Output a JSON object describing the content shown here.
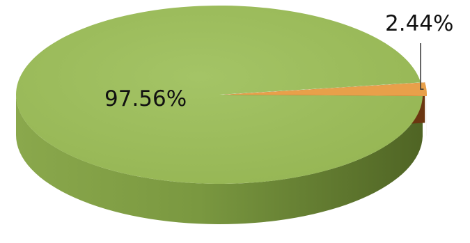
{
  "chart_data": {
    "type": "pie",
    "style": "3d",
    "categories": [
      "",
      ""
    ],
    "values": [
      97.56,
      2.44
    ],
    "data_labels": [
      "97.56%",
      "2.44%"
    ],
    "colors": [
      "#9bbb59",
      "#e8a04a"
    ],
    "side_colors": [
      "#6e8a32",
      "#7a3f10"
    ],
    "title": "",
    "legend": "none"
  }
}
